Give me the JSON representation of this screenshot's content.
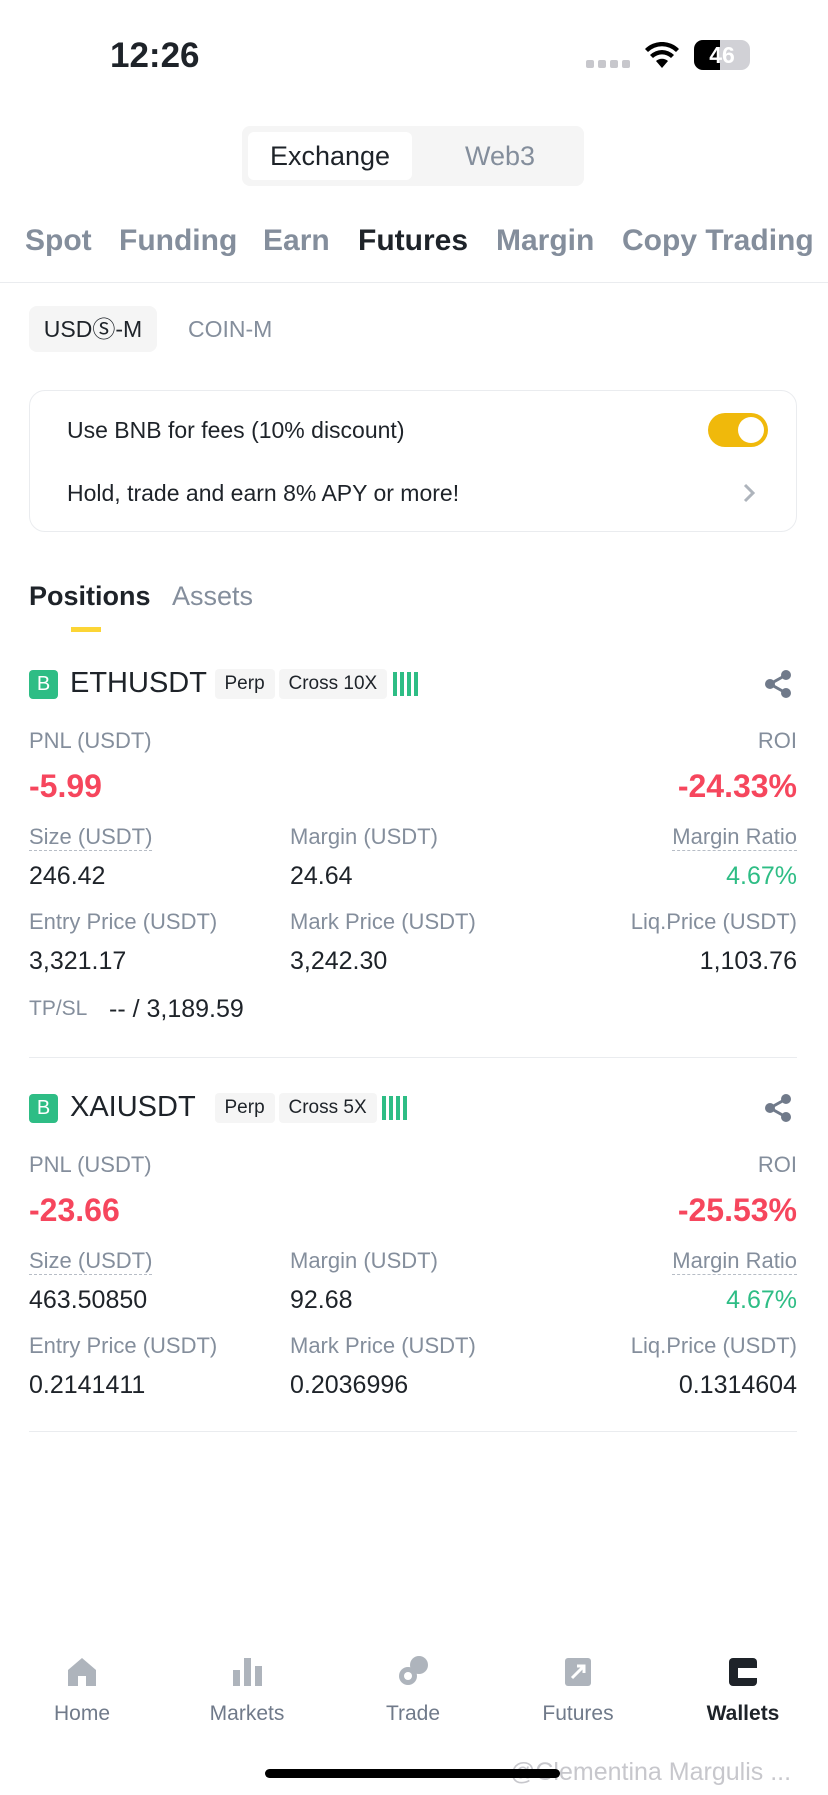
{
  "status_bar": {
    "time": "12:26",
    "battery": "46"
  },
  "top_toggle": [
    "Exchange",
    "Web3"
  ],
  "tabs": [
    "Spot",
    "Funding",
    "Earn",
    "Futures",
    "Margin",
    "Copy Trading"
  ],
  "sub_tabs": [
    "USDⓈ-M",
    "COIN-M"
  ],
  "bnb_card": {
    "fee_label": "Use BNB for fees (10% discount)",
    "promo": "Hold, trade and earn 8% APY or more!"
  },
  "section_tabs": [
    "Positions",
    "Assets"
  ],
  "positions": [
    {
      "badge": "B",
      "symbol": "ETHUSDT",
      "type": "Perp",
      "leverage": "Cross 10X",
      "pnl_label": "PNL (USDT)",
      "pnl": "-5.99",
      "roi_label": "ROI",
      "roi": "-24.33%",
      "fields": [
        {
          "label": "Size (USDT)",
          "value": "246.42"
        },
        {
          "label": "Margin (USDT)",
          "value": "24.64"
        },
        {
          "label": "Margin Ratio",
          "value": "4.67%"
        },
        {
          "label": "Entry Price (USDT)",
          "value": "3,321.17"
        },
        {
          "label": "Mark Price (USDT)",
          "value": "3,242.30"
        },
        {
          "label": "Liq.Price (USDT)",
          "value": "1,103.76"
        }
      ],
      "tpsl_label": "TP/SL",
      "tpsl": "-- / 3,189.59"
    },
    {
      "badge": "B",
      "symbol": "XAIUSDT",
      "type": "Perp",
      "leverage": "Cross 5X",
      "pnl_label": "PNL (USDT)",
      "pnl": "-23.66",
      "roi_label": "ROI",
      "roi": "-25.53%",
      "fields": [
        {
          "label": "Size (USDT)",
          "value": "463.50850"
        },
        {
          "label": "Margin (USDT)",
          "value": "92.68"
        },
        {
          "label": "Margin Ratio",
          "value": "4.67%"
        },
        {
          "label": "Entry Price (USDT)",
          "value": "0.2141411"
        },
        {
          "label": "Mark Price (USDT)",
          "value": "0.2036996"
        },
        {
          "label": "Liq.Price (USDT)",
          "value": "0.1314604"
        }
      ]
    }
  ],
  "nav": [
    "Home",
    "Markets",
    "Trade",
    "Futures",
    "Wallets"
  ],
  "watermark": "@Clementina Margulis ..."
}
